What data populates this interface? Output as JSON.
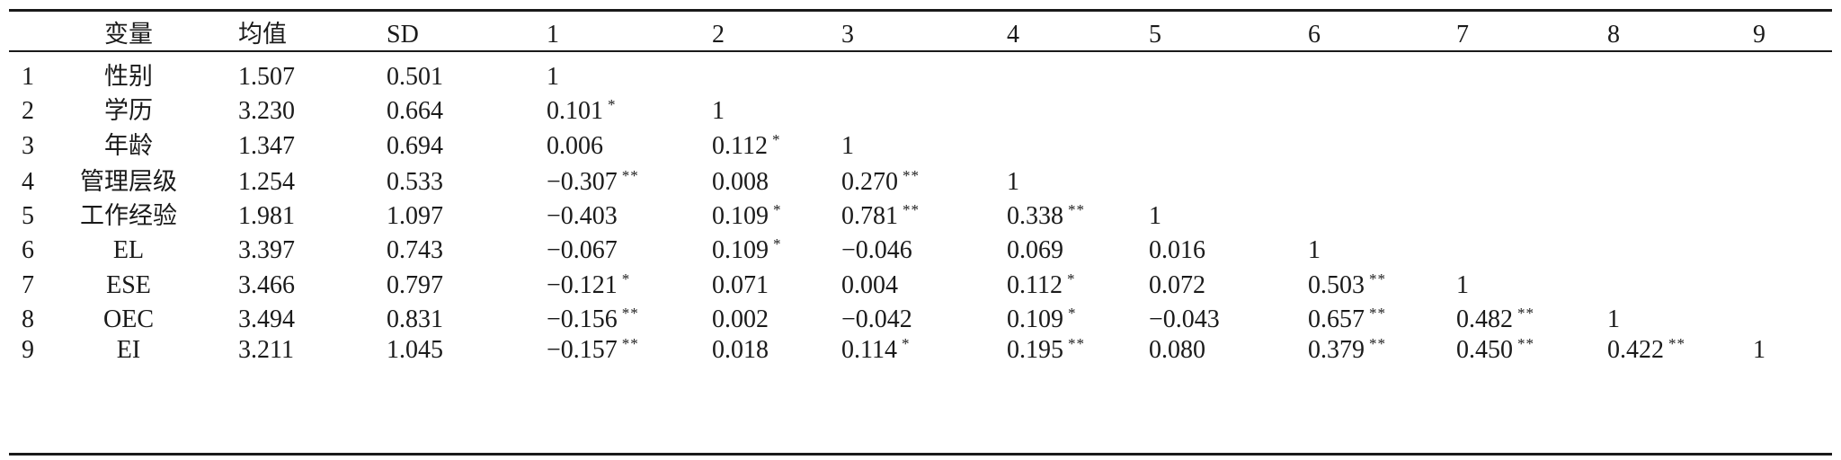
{
  "header": {
    "idx": "",
    "var": "变量",
    "mean": "均值",
    "sd": "SD",
    "c1": "1",
    "c2": "2",
    "c3": "3",
    "c4": "4",
    "c5": "5",
    "c6": "6",
    "c7": "7",
    "c8": "8",
    "c9": "9"
  },
  "rows": [
    {
      "idx": "1",
      "var": "性别",
      "mean": "1.507",
      "sd": "0.501",
      "cells": [
        {
          "v": "1",
          "s": ""
        }
      ]
    },
    {
      "idx": "2",
      "var": "学历",
      "mean": "3.230",
      "sd": "0.664",
      "cells": [
        {
          "v": "0.101",
          "s": "*"
        },
        {
          "v": "1",
          "s": ""
        }
      ]
    },
    {
      "idx": "3",
      "var": "年龄",
      "mean": "1.347",
      "sd": "0.694",
      "cells": [
        {
          "v": "0.006",
          "s": ""
        },
        {
          "v": "0.112",
          "s": "*"
        },
        {
          "v": "1",
          "s": ""
        }
      ]
    },
    {
      "idx": "4",
      "var": "管理层级",
      "mean": "1.254",
      "sd": "0.533",
      "cells": [
        {
          "v": "−0.307",
          "s": "**"
        },
        {
          "v": "0.008",
          "s": ""
        },
        {
          "v": "0.270",
          "s": "**"
        },
        {
          "v": "1",
          "s": ""
        }
      ]
    },
    {
      "idx": "5",
      "var": "工作经验",
      "mean": "1.981",
      "sd": "1.097",
      "cells": [
        {
          "v": "−0.403",
          "s": ""
        },
        {
          "v": "0.109",
          "s": "*"
        },
        {
          "v": "0.781",
          "s": "**"
        },
        {
          "v": "0.338",
          "s": "**"
        },
        {
          "v": "1",
          "s": ""
        }
      ]
    },
    {
      "idx": "6",
      "var": "EL",
      "mean": "3.397",
      "sd": "0.743",
      "cells": [
        {
          "v": "−0.067",
          "s": ""
        },
        {
          "v": "0.109",
          "s": "*"
        },
        {
          "v": "−0.046",
          "s": ""
        },
        {
          "v": "0.069",
          "s": ""
        },
        {
          "v": "0.016",
          "s": ""
        },
        {
          "v": "1",
          "s": ""
        }
      ]
    },
    {
      "idx": "7",
      "var": "ESE",
      "mean": "3.466",
      "sd": "0.797",
      "cells": [
        {
          "v": "−0.121",
          "s": "*"
        },
        {
          "v": "0.071",
          "s": ""
        },
        {
          "v": "0.004",
          "s": ""
        },
        {
          "v": "0.112",
          "s": "*"
        },
        {
          "v": "0.072",
          "s": ""
        },
        {
          "v": "0.503",
          "s": "**"
        },
        {
          "v": "1",
          "s": ""
        }
      ]
    },
    {
      "idx": "8",
      "var": "OEC",
      "mean": "3.494",
      "sd": "0.831",
      "cells": [
        {
          "v": "−0.156",
          "s": "**"
        },
        {
          "v": "0.002",
          "s": ""
        },
        {
          "v": "−0.042",
          "s": ""
        },
        {
          "v": "0.109",
          "s": "*"
        },
        {
          "v": "−0.043",
          "s": ""
        },
        {
          "v": "0.657",
          "s": "**"
        },
        {
          "v": "0.482",
          "s": "**"
        },
        {
          "v": "1",
          "s": ""
        }
      ]
    },
    {
      "idx": "9",
      "var": "EI",
      "mean": "3.211",
      "sd": "1.045",
      "cells": [
        {
          "v": "−0.157",
          "s": "**"
        },
        {
          "v": "0.018",
          "s": ""
        },
        {
          "v": "0.114",
          "s": "*"
        },
        {
          "v": "0.195",
          "s": "**"
        },
        {
          "v": "0.080",
          "s": ""
        },
        {
          "v": "0.379",
          "s": "**"
        },
        {
          "v": "0.450",
          "s": "**"
        },
        {
          "v": "0.422",
          "s": "**"
        },
        {
          "v": "1",
          "s": ""
        }
      ]
    }
  ]
}
